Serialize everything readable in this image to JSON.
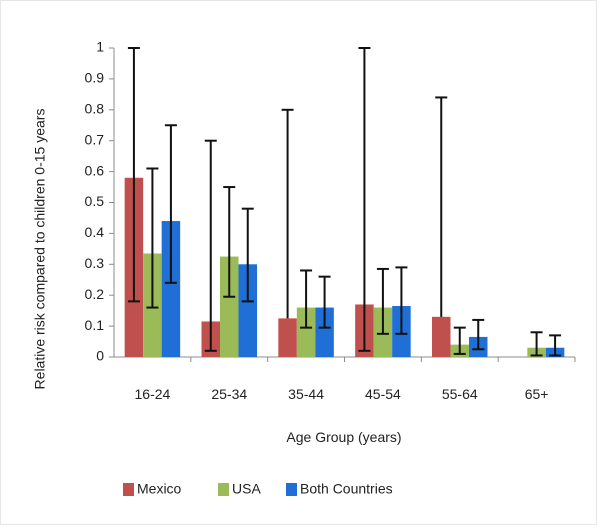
{
  "chart_data": {
    "type": "bar",
    "title": "",
    "xlabel": "Age Group (years)",
    "ylabel": "Relative risk compared to children 0-15 years",
    "ylim": [
      0,
      1
    ],
    "yticks": [
      "0",
      "0.1",
      "0.2",
      "0.3",
      "0.4",
      "0.5",
      "0.6",
      "0.7",
      "0.8",
      "0.9",
      "1"
    ],
    "categories": [
      "16-24",
      "25-34",
      "35-44",
      "45-54",
      "55-64",
      "65+"
    ],
    "legend_position": "bottom",
    "grid": false,
    "series": [
      {
        "name": "Mexico",
        "color": "#c0504d",
        "values": [
          0.58,
          0.115,
          0.125,
          0.17,
          0.13,
          null
        ],
        "error_low": [
          0.18,
          0.02,
          null,
          0.02,
          null,
          null
        ],
        "error_high": [
          1.0,
          0.7,
          0.8,
          1.0,
          0.84,
          null
        ]
      },
      {
        "name": "USA",
        "color": "#9bbb59",
        "values": [
          0.335,
          0.325,
          0.16,
          0.16,
          0.04,
          0.03
        ],
        "error_low": [
          0.16,
          0.195,
          0.095,
          0.075,
          0.01,
          0.005
        ],
        "error_high": [
          0.61,
          0.55,
          0.28,
          0.285,
          0.095,
          0.08
        ]
      },
      {
        "name": "Both Countries",
        "color": "#1f6fd6",
        "values": [
          0.44,
          0.3,
          0.16,
          0.165,
          0.065,
          0.03
        ],
        "error_low": [
          0.24,
          0.18,
          0.095,
          0.075,
          0.025,
          0.005
        ],
        "error_high": [
          0.75,
          0.48,
          0.26,
          0.29,
          0.12,
          0.07
        ]
      }
    ]
  }
}
